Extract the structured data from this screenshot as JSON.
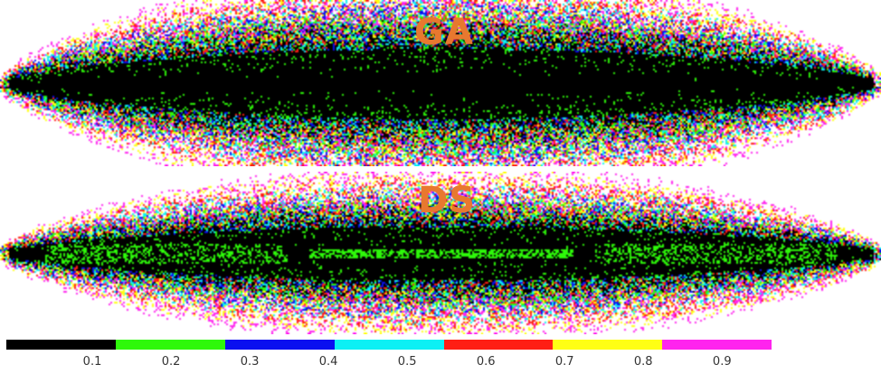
{
  "panels": [
    {
      "id": "top",
      "label": "GA"
    },
    {
      "id": "bottom",
      "label": "DS"
    }
  ],
  "label_color": "#E8782F",
  "colorbar": {
    "colors": [
      "#000000",
      "#2EF80A",
      "#0A10F0",
      "#0CF0F4",
      "#FF1E14",
      "#FFFF14",
      "#FF24EE",
      "#FFFFFF"
    ],
    "tick_labels": [
      "0.1",
      "0.2",
      "0.3",
      "0.4",
      "0.5",
      "0.6",
      "0.7",
      "0.8",
      "0.9"
    ],
    "tick_values": [
      0.1,
      0.2,
      0.3,
      0.4,
      0.5,
      0.6,
      0.7,
      0.8,
      0.9
    ],
    "range": [
      0,
      1
    ]
  }
}
